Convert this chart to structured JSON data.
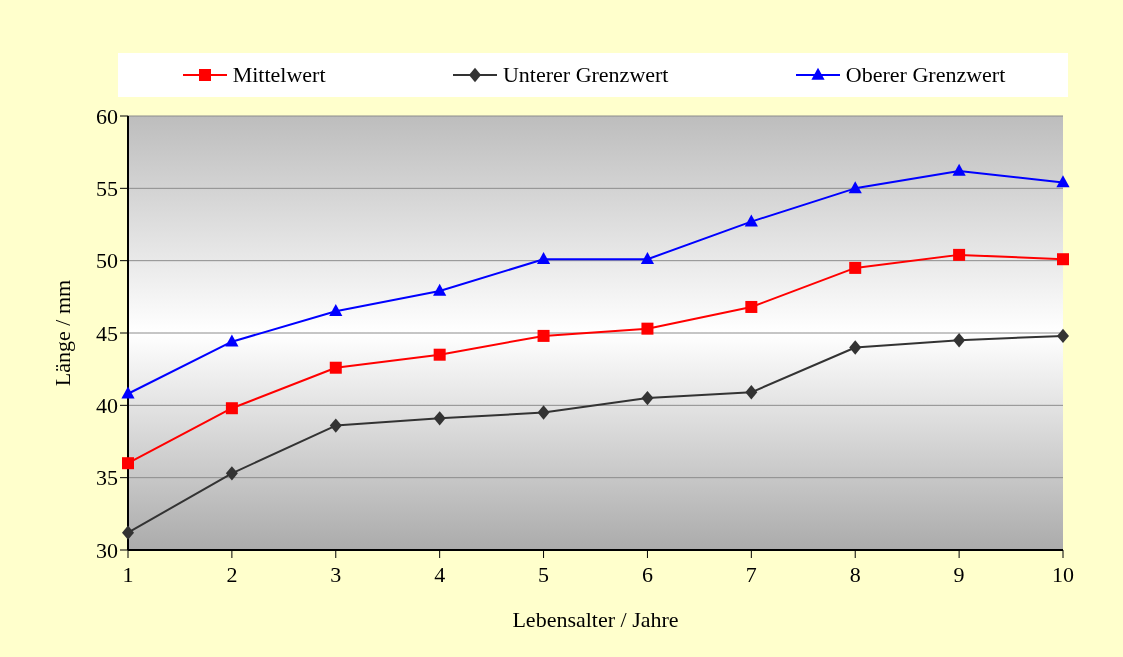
{
  "chart_data": {
    "type": "line",
    "xlabel": "Lebensalter / Jahre",
    "ylabel": "Länge / mm",
    "categories": [
      "1",
      "2",
      "3",
      "4",
      "5",
      "6",
      "7",
      "8",
      "9",
      "10"
    ],
    "series": [
      {
        "name": "Mittelwert",
        "color": "#ff0000",
        "marker": "square",
        "values": [
          36.0,
          39.8,
          42.6,
          43.5,
          44.8,
          45.3,
          46.8,
          49.5,
          50.4,
          50.1
        ]
      },
      {
        "name": "Unterer Grenzwert",
        "color": "#333333",
        "marker": "diamond",
        "values": [
          31.2,
          35.3,
          38.6,
          39.1,
          39.5,
          40.5,
          40.9,
          44.0,
          44.5,
          44.8
        ]
      },
      {
        "name": "Oberer Grenzwert",
        "color": "#0000ff",
        "marker": "triangle",
        "values": [
          40.8,
          44.4,
          46.5,
          47.9,
          50.1,
          50.1,
          52.7,
          55.0,
          56.2,
          55.4
        ]
      }
    ],
    "ylim": [
      30,
      60
    ],
    "yticks": [
      30,
      35,
      40,
      45,
      50,
      55,
      60
    ],
    "grid": "y",
    "legend": "top",
    "line_style": "solid"
  }
}
